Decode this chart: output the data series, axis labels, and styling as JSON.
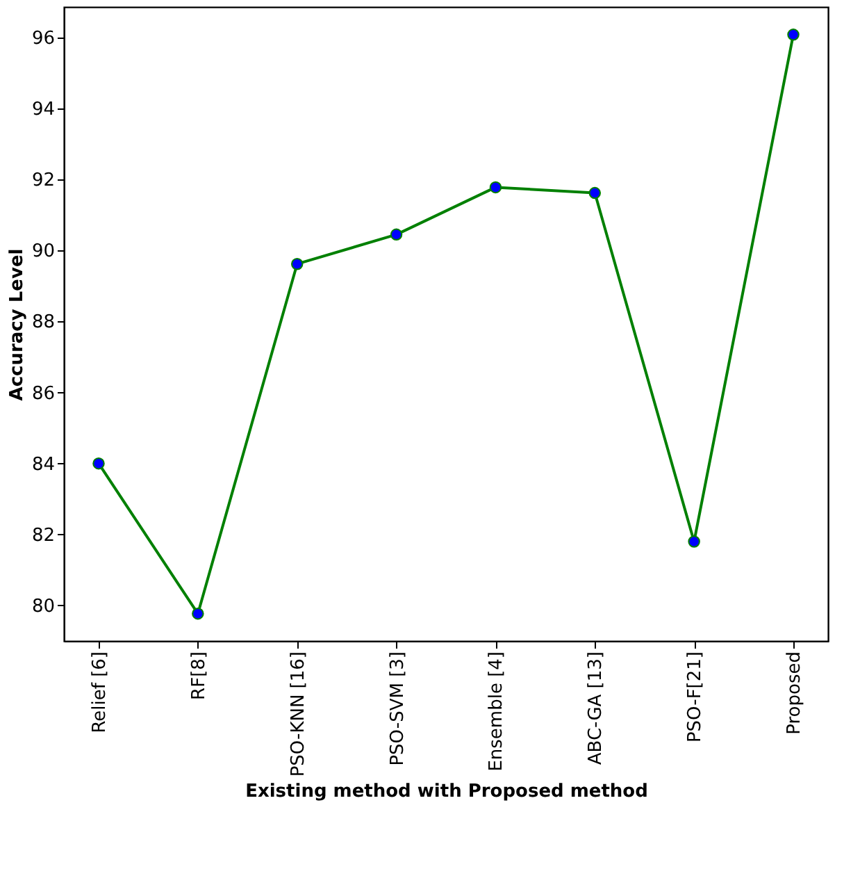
{
  "chart_data": {
    "type": "line",
    "xlabel": "Existing method with Proposed method",
    "ylabel": "Accuracy Level",
    "categories": [
      "Relief [6]",
      "RF[8]",
      "PSO-KNN [16]",
      "PSO-SVM [3]",
      "Ensemble  [4]",
      "ABC-GA [13]",
      "PSO-F[21]",
      "Proposed"
    ],
    "series": [
      {
        "color": "#008000",
        "colors": [
          "#0000ff",
          "#0000ff",
          "#0000ff",
          "#0000ff",
          "#0000ff",
          "#0000ff",
          "#0000ff",
          "#0000ff"
        ],
        "values": [
          84.0,
          79.77,
          89.62,
          90.45,
          91.78,
          91.62,
          81.8,
          96.08
        ]
      }
    ],
    "ylim": [
      79.0,
      96.86
    ],
    "yticks": [
      80,
      82,
      84,
      86,
      88,
      90,
      92,
      94,
      96
    ],
    "grid": false,
    "marker": "circle",
    "line_style": "solid"
  }
}
